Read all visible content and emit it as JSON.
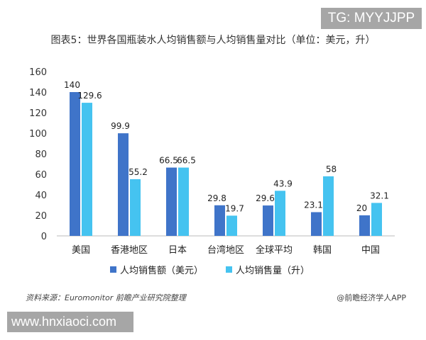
{
  "watermark_top": "TG: MYYJJPP",
  "watermark_bottom": "www.hnxiaoci.com",
  "source": "资料来源：Euromonitor 前瞻产业研究院整理",
  "credit": "@前瞻经济学人APP",
  "chart_data": {
    "type": "bar",
    "title": "图表5：世界各国瓶装水人均销售额与人均销售量对比（单位：美元，升）",
    "categories": [
      "美国",
      "香港地区",
      "日本",
      "台湾地区",
      "全球平均",
      "韩国",
      "中国"
    ],
    "series": [
      {
        "name": "人均销售额（美元）",
        "color": "#3f74c9",
        "values": [
          140,
          99.9,
          66.5,
          29.8,
          29.6,
          23.1,
          20
        ]
      },
      {
        "name": "人均销售量（升）",
        "color": "#45c3f0",
        "values": [
          129.6,
          55.2,
          66.5,
          19.7,
          43.9,
          58,
          32.1
        ]
      }
    ],
    "ylim": [
      0,
      160
    ],
    "yticks": [
      0,
      20,
      40,
      60,
      80,
      100,
      120,
      140,
      160
    ],
    "grid": false,
    "legend": "bottom"
  }
}
